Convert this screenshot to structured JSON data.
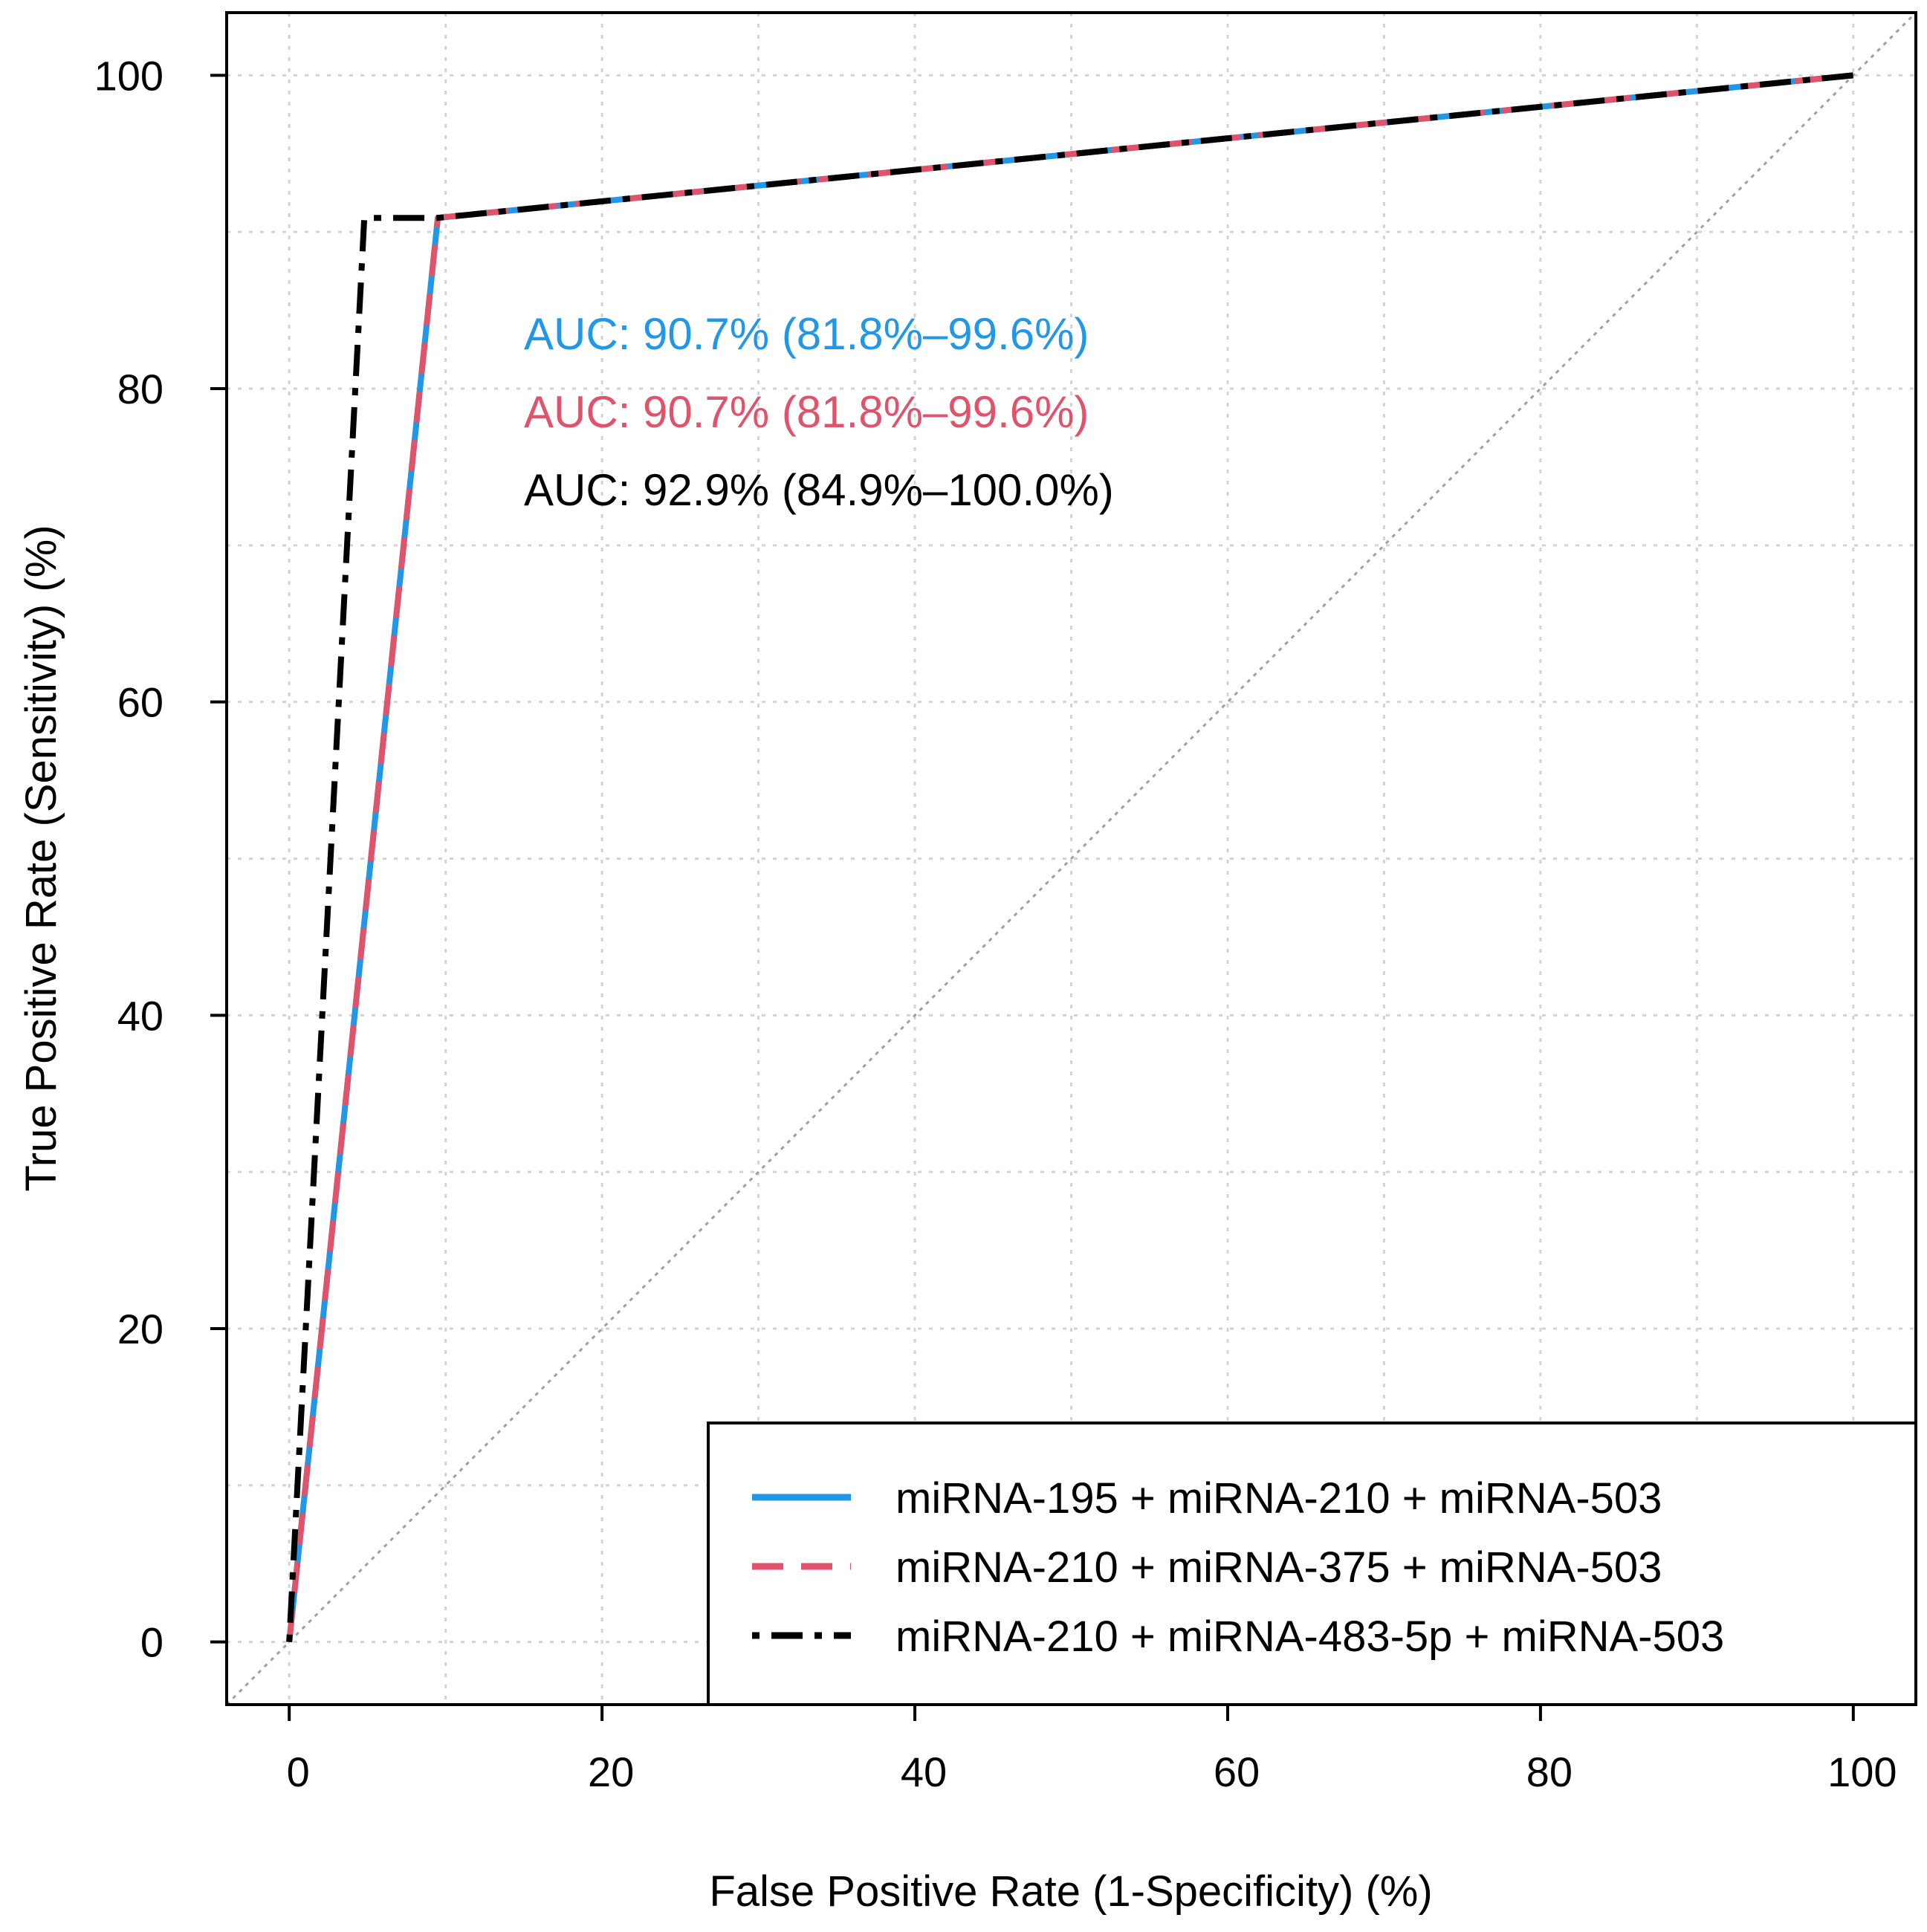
{
  "chart_data": {
    "type": "line",
    "xlabel": "False Positive Rate (1-Specificity) (%)",
    "ylabel": "True Positive Rate (Sensitivity) (%)",
    "xlim": [
      -4,
      104
    ],
    "ylim": [
      -4,
      104
    ],
    "x_ticks": [
      "0",
      "20",
      "40",
      "60",
      "80",
      "100"
    ],
    "y_ticks": [
      "0",
      "20",
      "40",
      "60",
      "80",
      "100"
    ],
    "grid": true,
    "diagonal_reference": {
      "x": [
        0,
        100
      ],
      "y": [
        0,
        100
      ],
      "color": "#a0a0a0"
    },
    "series": [
      {
        "name": "miRNA-195 + miRNA-210 + miRNA-503",
        "color": "#2297e6",
        "style": "solid",
        "x": [
          0,
          9.5,
          100
        ],
        "y": [
          0,
          90.9,
          100
        ],
        "auc_label": "AUC: 90.7% (81.8%–99.6%)"
      },
      {
        "name": "miRNA-210 + miRNA-375 + miRNA-503",
        "color": "#df536b",
        "style": "dashed",
        "x": [
          0,
          9.5,
          100
        ],
        "y": [
          0,
          90.9,
          100
        ],
        "auc_label": "AUC: 90.7% (81.8%–99.6%)"
      },
      {
        "name": "miRNA-210 + miRNA-483-5p + miRNA-503",
        "color": "#000000",
        "style": "dotdash",
        "x": [
          0,
          4.8,
          9.5,
          100
        ],
        "y": [
          0,
          90.9,
          90.9,
          100
        ],
        "auc_label": "AUC: 92.9% (84.9%–100.0%)"
      }
    ],
    "legend_position": "bottom-right"
  }
}
